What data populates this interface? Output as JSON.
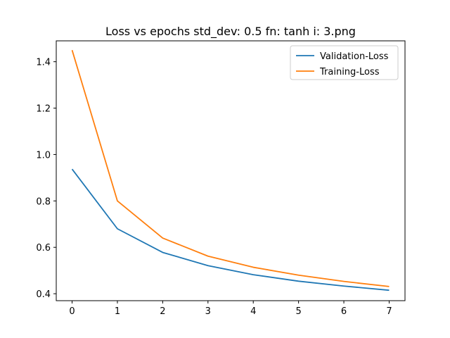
{
  "chart_data": {
    "type": "line",
    "title": "Loss vs epochs std_dev: 0.5 fn: tanh i: 3.png",
    "xlabel": "",
    "ylabel": "",
    "x": [
      0,
      1,
      2,
      3,
      4,
      5,
      6,
      7
    ],
    "xlim": [
      -0.35,
      7.35
    ],
    "ylim": [
      0.37,
      1.49
    ],
    "xticks": [
      0,
      1,
      2,
      3,
      4,
      5,
      6,
      7
    ],
    "yticks": [
      0.4,
      0.6,
      0.8,
      1.0,
      1.2,
      1.4
    ],
    "ytick_labels": [
      "0.4",
      "0.6",
      "0.8",
      "1.0",
      "1.2",
      "1.4"
    ],
    "grid": false,
    "legend_position": "top-right",
    "series": [
      {
        "name": "Validation-Loss",
        "color": "#1f77b4",
        "values": [
          0.937,
          0.68,
          0.578,
          0.521,
          0.482,
          0.454,
          0.433,
          0.415
        ]
      },
      {
        "name": "Training-Loss",
        "color": "#ff7f0e",
        "values": [
          1.45,
          0.8,
          0.64,
          0.562,
          0.514,
          0.48,
          0.453,
          0.431
        ]
      }
    ]
  }
}
